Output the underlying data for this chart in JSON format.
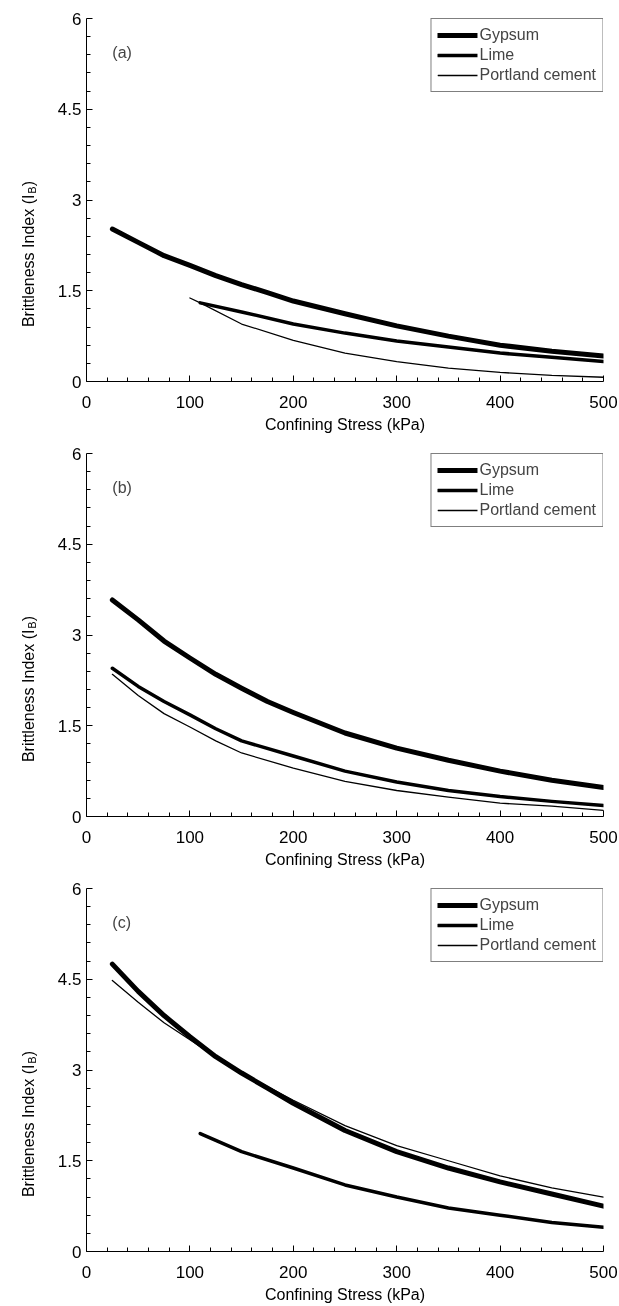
{
  "chart_data": [
    {
      "type": "line",
      "xlabel": "Confining Stress (kPa)",
      "ylabel": "Brittleness Index (I$_{B}$)",
      "annotations": [
        "(a)"
      ],
      "xlim": [
        0,
        500
      ],
      "ylim": [
        0,
        6
      ],
      "xticks": [
        0,
        100,
        200,
        300,
        400,
        500
      ],
      "yticks": [
        0,
        1.5,
        3,
        4.5,
        6
      ],
      "grid": false,
      "legend": "top right",
      "marker": "none",
      "line_style": "solid",
      "series": [
        {
          "name": "Gypsum",
          "color": "#000000",
          "x": [
            25,
            50,
            75,
            100,
            125,
            150,
            175,
            200,
            250,
            300,
            350,
            400,
            450,
            500
          ],
          "values": [
            2.52,
            2.3,
            2.08,
            1.92,
            1.75,
            1.6,
            1.47,
            1.33,
            1.12,
            0.92,
            0.75,
            0.6,
            0.5,
            0.42
          ]
        },
        {
          "name": "Lime",
          "color": "#000000",
          "x": [
            110,
            150,
            200,
            250,
            300,
            350,
            400,
            450,
            500
          ],
          "values": [
            1.3,
            1.15,
            0.95,
            0.8,
            0.67,
            0.57,
            0.47,
            0.4,
            0.33
          ]
        },
        {
          "name": "Portland cement",
          "color": "#000000",
          "x": [
            100,
            110,
            150,
            200,
            250,
            300,
            350,
            400,
            450,
            500
          ],
          "values": [
            1.38,
            1.3,
            0.95,
            0.68,
            0.47,
            0.33,
            0.22,
            0.15,
            0.1,
            0.07
          ]
        }
      ]
    },
    {
      "type": "line",
      "xlabel": "Confining Stress (kPa)",
      "ylabel": "Brittleness Index (I$_{B}$)",
      "annotations": [
        "(b)"
      ],
      "xlim": [
        0,
        500
      ],
      "ylim": [
        0,
        6
      ],
      "xticks": [
        0,
        100,
        200,
        300,
        400,
        500
      ],
      "yticks": [
        0,
        1.5,
        3,
        4.5,
        6
      ],
      "grid": false,
      "legend": "top right",
      "marker": "none",
      "line_style": "solid",
      "series": [
        {
          "name": "Gypsum",
          "color": "#000000",
          "x": [
            25,
            50,
            75,
            100,
            125,
            150,
            175,
            200,
            250,
            300,
            350,
            400,
            450,
            500
          ],
          "values": [
            3.58,
            3.25,
            2.9,
            2.62,
            2.35,
            2.12,
            1.9,
            1.72,
            1.38,
            1.13,
            0.93,
            0.75,
            0.6,
            0.48
          ]
        },
        {
          "name": "Lime",
          "color": "#000000",
          "x": [
            25,
            50,
            75,
            100,
            125,
            150,
            200,
            250,
            300,
            350,
            400,
            450,
            500
          ],
          "values": [
            2.45,
            2.15,
            1.9,
            1.68,
            1.45,
            1.25,
            1.0,
            0.75,
            0.57,
            0.43,
            0.33,
            0.25,
            0.18
          ]
        },
        {
          "name": "Portland cement",
          "color": "#000000",
          "x": [
            25,
            50,
            75,
            100,
            125,
            150,
            200,
            250,
            300,
            350,
            400,
            450,
            500
          ],
          "values": [
            2.35,
            2.0,
            1.7,
            1.48,
            1.25,
            1.05,
            0.8,
            0.58,
            0.43,
            0.32,
            0.22,
            0.17,
            0.1
          ]
        }
      ]
    },
    {
      "type": "line",
      "xlabel": "Confining Stress (kPa)",
      "ylabel": "Brittleness Index (I$_{B}$)",
      "annotations": [
        "(c)"
      ],
      "xlim": [
        0,
        500
      ],
      "ylim": [
        0,
        6
      ],
      "xticks": [
        0,
        100,
        200,
        300,
        400,
        500
      ],
      "yticks": [
        0,
        1.5,
        3,
        4.5,
        6
      ],
      "grid": false,
      "legend": "top right",
      "marker": "none",
      "line_style": "solid",
      "series": [
        {
          "name": "Gypsum",
          "color": "#000000",
          "x": [
            25,
            50,
            75,
            100,
            125,
            150,
            175,
            200,
            250,
            300,
            350,
            400,
            450,
            500
          ],
          "values": [
            4.75,
            4.3,
            3.9,
            3.55,
            3.22,
            2.95,
            2.7,
            2.45,
            2.0,
            1.65,
            1.38,
            1.15,
            0.95,
            0.75
          ]
        },
        {
          "name": "Lime",
          "color": "#000000",
          "x": [
            110,
            150,
            200,
            250,
            300,
            350,
            400,
            450,
            500
          ],
          "values": [
            1.95,
            1.65,
            1.38,
            1.1,
            0.9,
            0.72,
            0.6,
            0.48,
            0.4
          ]
        },
        {
          "name": "Portland cement",
          "color": "#000000",
          "x": [
            25,
            50,
            75,
            100,
            125,
            150,
            200,
            250,
            300,
            350,
            400,
            450,
            500
          ],
          "values": [
            4.48,
            4.12,
            3.78,
            3.5,
            3.22,
            2.95,
            2.5,
            2.08,
            1.75,
            1.5,
            1.25,
            1.05,
            0.9
          ]
        }
      ]
    }
  ]
}
